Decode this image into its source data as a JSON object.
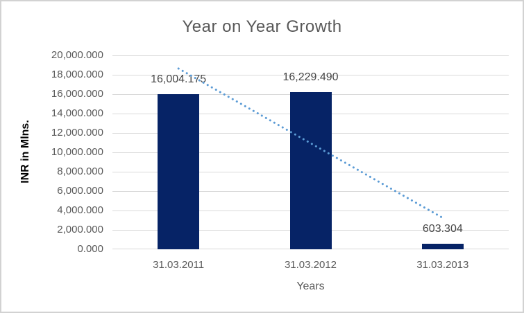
{
  "chart_data": {
    "type": "bar",
    "title": "Year on Year Growth",
    "xlabel": "Years",
    "ylabel": "INR in Mlns.",
    "categories": [
      "31.03.2011",
      "31.03.2012",
      "31.03.2013"
    ],
    "values": [
      16004.175,
      16229.49,
      603.304
    ],
    "data_labels": [
      "16,004.175",
      "16,229.490",
      "603.304"
    ],
    "ylim": [
      0,
      20000
    ],
    "ytick_step": 2000,
    "ytick_labels": [
      "0.000",
      "2,000.000",
      "4,000.000",
      "6,000.000",
      "8,000.000",
      "10,000.000",
      "12,000.000",
      "14,000.000",
      "16,000.000",
      "18,000.000",
      "20,000.000"
    ],
    "grid": true,
    "legend": "none",
    "trendline": {
      "type": "linear",
      "style": "dotted"
    }
  },
  "colors": {
    "bar": "#062366",
    "trendline": "#5b9bd5",
    "title_text": "#595959",
    "tick_text": "#595959",
    "data_label_text": "#474747",
    "axis_title_text": "#000000",
    "gridline": "#d9d9d9",
    "border": "#d2d2d2"
  }
}
